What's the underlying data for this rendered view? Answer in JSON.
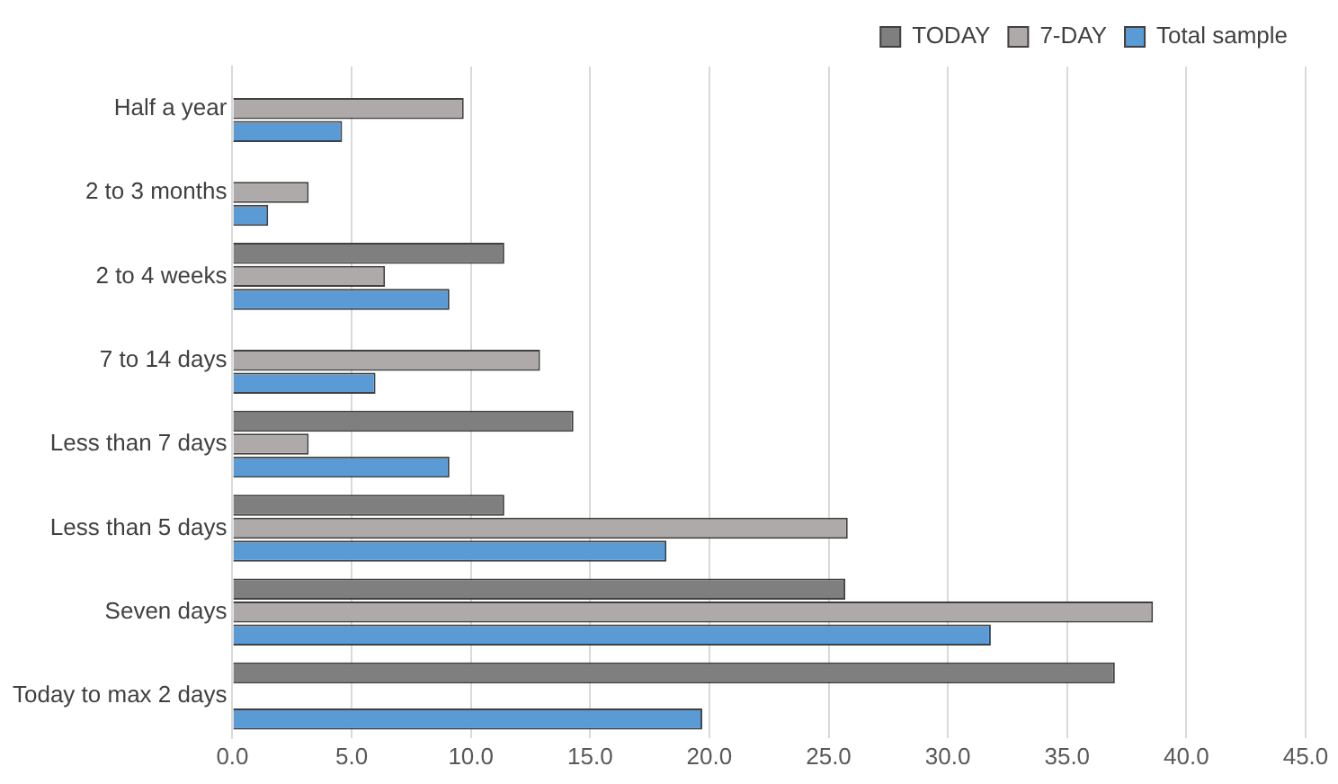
{
  "chart_data": {
    "type": "bar",
    "orientation": "horizontal",
    "categories": [
      "Half a year",
      "2 to 3 months",
      "2 to 4 weeks",
      "7 to 14 days",
      "Less than 7 days",
      "Less than 5 days",
      "Seven days",
      "Today to max 2 days"
    ],
    "series": [
      {
        "name": "TODAY",
        "color": "#7f7f7f",
        "values": [
          null,
          null,
          11.4,
          null,
          14.3,
          11.4,
          25.7,
          37.0
        ]
      },
      {
        "name": "7-DAY",
        "color": "#aeaaaa",
        "values": [
          9.7,
          3.2,
          6.4,
          12.9,
          3.2,
          25.8,
          38.6,
          null
        ]
      },
      {
        "name": "Total sample",
        "color": "#5b9bd5",
        "values": [
          4.6,
          1.5,
          9.1,
          6.0,
          9.1,
          18.2,
          31.8,
          19.7
        ]
      }
    ],
    "xlim": [
      0,
      45
    ],
    "xticks": [
      {
        "value": 0,
        "label": "0.0"
      },
      {
        "value": 5,
        "label": "5.0"
      },
      {
        "value": 10,
        "label": "10.0"
      },
      {
        "value": 15,
        "label": "15.0"
      },
      {
        "value": 20,
        "label": "20.0"
      },
      {
        "value": 25,
        "label": "25.0"
      },
      {
        "value": 30,
        "label": "30.0"
      },
      {
        "value": 35,
        "label": "35.0"
      },
      {
        "value": 40,
        "label": "40.0"
      },
      {
        "value": 45,
        "label": "45.0"
      }
    ],
    "grid": "x",
    "legend": "top right"
  }
}
